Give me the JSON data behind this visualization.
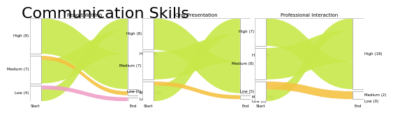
{
  "title": "Communication Skills",
  "title_fontsize": 16,
  "panels": [
    {
      "name": "Report Writing",
      "start": {
        "High": 9,
        "Medium": 7,
        "Low": 4
      },
      "end": {
        "High": 18,
        "Medium": 1,
        "Low": 1
      },
      "flows": [
        {
          "from": "High",
          "to": "High",
          "value": 9,
          "color": "#c8e84a"
        },
        {
          "from": "Medium",
          "to": "High",
          "value": 6,
          "color": "#c8e84a"
        },
        {
          "from": "Medium",
          "to": "Medium",
          "value": 1,
          "color": "#f5c242"
        },
        {
          "from": "Low",
          "to": "High",
          "value": 3,
          "color": "#c8e84a"
        },
        {
          "from": "Low",
          "to": "Low",
          "value": 1,
          "color": "#f0a0c8"
        }
      ]
    },
    {
      "name": "Oral Presentation",
      "start": {
        "High": 8,
        "Medium": 7,
        "Low": 5
      },
      "end": {
        "High": 19,
        "Medium": 1,
        "Low": 0
      },
      "flows": [
        {
          "from": "High",
          "to": "High",
          "value": 8,
          "color": "#c8e84a"
        },
        {
          "from": "Medium",
          "to": "High",
          "value": 7,
          "color": "#c8e84a"
        },
        {
          "from": "Low",
          "to": "High",
          "value": 4,
          "color": "#c8e84a"
        },
        {
          "from": "Low",
          "to": "Medium",
          "value": 1,
          "color": "#f5c242"
        }
      ]
    },
    {
      "name": "Professional Interaction",
      "start": {
        "High": 7,
        "Medium": 8,
        "Low": 5
      },
      "end": {
        "High": 18,
        "Medium": 2,
        "Low": 0
      },
      "flows": [
        {
          "from": "High",
          "to": "High",
          "value": 7,
          "color": "#c8e84a"
        },
        {
          "from": "Medium",
          "to": "High",
          "value": 8,
          "color": "#c8e84a"
        },
        {
          "from": "Low",
          "to": "High",
          "value": 3,
          "color": "#c8e84a"
        },
        {
          "from": "Low",
          "to": "Medium",
          "value": 2,
          "color": "#f5c242"
        }
      ]
    }
  ],
  "level_colors": {
    "High": "#c8e84a",
    "Medium": "#f5c242",
    "Low": "#f0a0c8"
  },
  "bg_color": "#ffffff",
  "box_edge_color": "#999999",
  "panel_border_color": "#cccccc"
}
